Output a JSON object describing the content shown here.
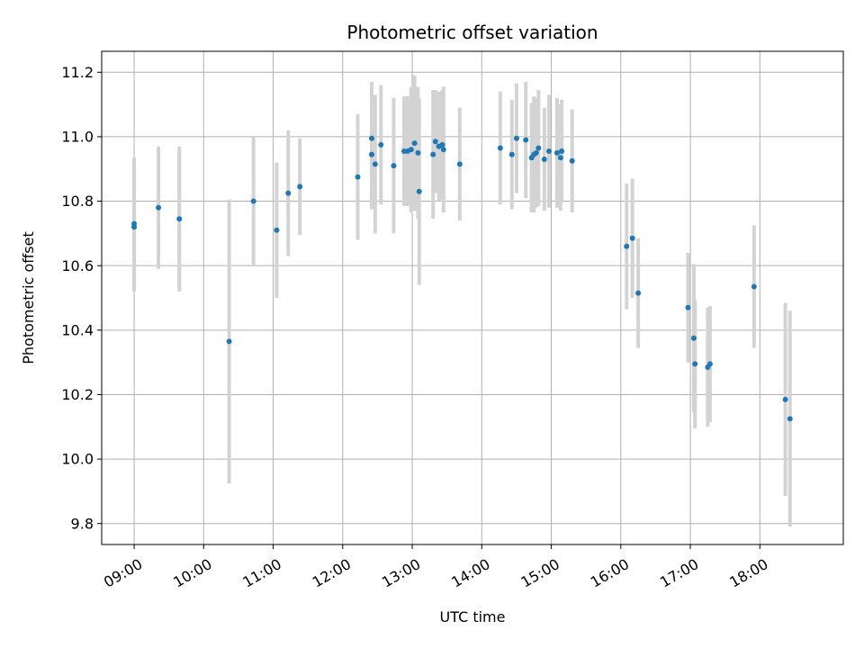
{
  "chart_data": {
    "type": "scatter",
    "title": "Photometric offset variation",
    "xlabel": "UTC time",
    "ylabel": "Photometric offset",
    "xlim": [
      "08:32",
      "19:12"
    ],
    "ylim": [
      9.735,
      11.265
    ],
    "x_ticks": [
      "09:00",
      "10:00",
      "11:00",
      "12:00",
      "13:00",
      "14:00",
      "15:00",
      "16:00",
      "17:00",
      "18:00"
    ],
    "y_ticks": [
      "9.8",
      "10.0",
      "10.2",
      "10.4",
      "10.6",
      "10.8",
      "11.0",
      "11.2"
    ],
    "grid": true,
    "legend": "none",
    "colors": {
      "point": "#1f77b4",
      "errorbar": "#d3d3d3",
      "grid": "#b0b0b0",
      "axes": "#000000"
    },
    "series": [
      {
        "x": [
          "09:00",
          "09:00",
          "09:21",
          "09:39",
          "10:22",
          "10:43",
          "11:03",
          "11:13",
          "11:23",
          "12:13",
          "12:25",
          "12:25",
          "12:28",
          "12:33",
          "12:44",
          "12:53",
          "12:56",
          "12:59",
          "13:02",
          "13:05",
          "13:06",
          "13:18",
          "13:20",
          "13:23",
          "13:26",
          "13:27",
          "13:41",
          "14:16",
          "14:26",
          "14:30",
          "14:38",
          "14:43",
          "14:45",
          "14:47",
          "14:49",
          "14:54",
          "14:58",
          "15:05",
          "15:08",
          "15:09",
          "15:18"
        ],
        "y": [
          10.73,
          10.72,
          10.78,
          10.745,
          10.365,
          10.8,
          10.71,
          10.825,
          10.845,
          10.875,
          10.995,
          10.945,
          10.915,
          10.975,
          10.91,
          10.955,
          10.955,
          10.96,
          10.98,
          10.95,
          10.83,
          10.945,
          10.985,
          10.97,
          10.975,
          10.96,
          10.915,
          10.965,
          10.945,
          10.995,
          10.99,
          10.935,
          10.945,
          10.95,
          10.965,
          10.93,
          10.955,
          10.95,
          10.935,
          10.955,
          10.925
        ],
        "yerr": [
          0.205,
          0.2,
          0.19,
          0.225,
          0.44,
          0.2,
          0.21,
          0.195,
          0.15,
          0.195,
          0.175,
          0.17,
          0.215,
          0.185,
          0.21,
          0.17,
          0.17,
          0.195,
          0.21,
          0.205,
          0.29,
          0.2,
          0.16,
          0.17,
          0.17,
          0.195,
          0.175,
          0.175,
          0.17,
          0.17,
          0.18,
          0.17,
          0.18,
          0.17,
          0.18,
          0.16,
          0.175,
          0.17,
          0.165,
          0.16,
          0.16
        ],
        "point_color": "#1f77b4"
      },
      {
        "x": [
          "16:05",
          "16:10",
          "16:15",
          "16:58",
          "17:03",
          "17:04",
          "17:15",
          "17:17",
          "17:55",
          "18:22",
          "18:26"
        ],
        "y": [
          10.66,
          10.685,
          10.515,
          10.47,
          10.375,
          10.295,
          10.285,
          10.295,
          10.535,
          10.185,
          10.125
        ],
        "yerr": [
          0.195,
          0.185,
          0.17,
          0.17,
          0.23,
          0.2,
          0.185,
          0.18,
          0.19,
          0.3,
          0.335
        ],
        "point_color": "#1f77b4"
      }
    ]
  }
}
